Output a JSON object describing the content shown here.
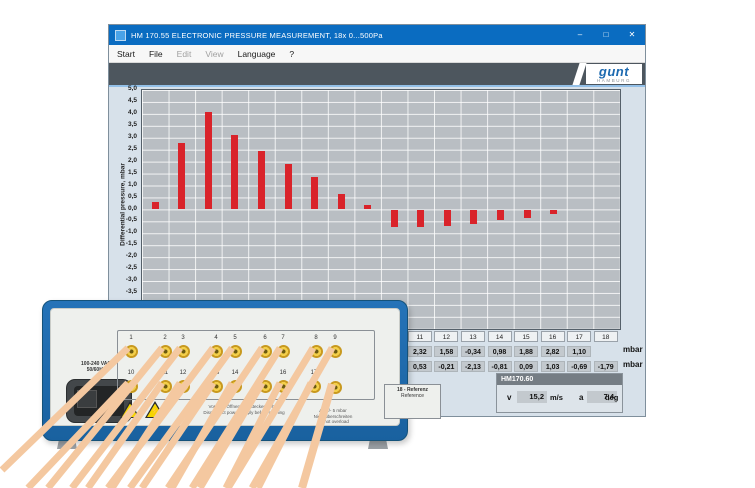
{
  "window": {
    "title": "HM 170.55 ELECTRONIC PRESSURE MEASUREMENT, 18x 0...500Pa",
    "controls": {
      "minimize": "–",
      "maximize": "□",
      "close": "✕"
    },
    "menu": [
      {
        "label": "Start",
        "enabled": true
      },
      {
        "label": "File",
        "enabled": true
      },
      {
        "label": "Edit",
        "enabled": false
      },
      {
        "label": "View",
        "enabled": false
      },
      {
        "label": "Language",
        "enabled": true
      },
      {
        "label": "?",
        "enabled": true
      }
    ],
    "brand": {
      "word": "gunt",
      "sub": "HAMBURG"
    }
  },
  "chart_data": {
    "type": "bar",
    "title": "",
    "categories": [
      "1",
      "2",
      "3",
      "4",
      "5",
      "6",
      "7",
      "8",
      "9",
      "10",
      "11",
      "12",
      "13",
      "14",
      "15",
      "16",
      "17",
      "18"
    ],
    "values": [
      0.3,
      2.8,
      4.1,
      3.1,
      2.45,
      1.9,
      1.35,
      0.65,
      0.2,
      -0.75,
      -0.75,
      -0.7,
      -0.6,
      -0.45,
      -0.35,
      -0.2,
      0,
      0
    ],
    "xlabel": "",
    "ylabel": "Differential pressure, mbar",
    "ylim": [
      -5,
      5
    ],
    "ytick_step": 0.5,
    "yticks": [
      "5,0",
      "4,5",
      "4,0",
      "3,5",
      "3,0",
      "2,5",
      "2,0",
      "1,5",
      "1,0",
      "0,5",
      "0,0",
      "-0,5",
      "-1,0",
      "-1,5",
      "-2,0",
      "-2,5",
      "-3,0",
      "-3,5",
      "-4,0",
      "-4,5",
      "-5,0"
    ],
    "grid": true,
    "legend": false,
    "bar_color": "#d9232a",
    "plot_bg": "#b9bec3"
  },
  "table": {
    "headers": [
      "1",
      "2",
      "3",
      "4",
      "5",
      "6",
      "7",
      "8",
      "9",
      "10",
      "11",
      "12",
      "13",
      "14",
      "15",
      "16",
      "17",
      "18"
    ],
    "rows": [
      {
        "values": [
          "",
          "",
          "",
          "",
          "",
          "",
          "",
          "",
          "",
          "",
          "2,32",
          "1,58",
          "-0,34",
          "0,98",
          "1,88",
          "2,82",
          "1,10",
          ""
        ],
        "unit": "mbar"
      },
      {
        "values": [
          "",
          "",
          "",
          "",
          "",
          "",
          "",
          "",
          "",
          "",
          "0,53",
          "-0,21",
          "-2,13",
          "-0,81",
          "0,09",
          "1,03",
          "-0,69",
          "-1,79"
        ],
        "unit": "mbar"
      }
    ]
  },
  "aux_panel": {
    "title": "HM170.60",
    "v_label": "v",
    "v_value": "15,2",
    "v_unit": "m/s",
    "a_label": "a",
    "a_value": "7,4",
    "a_unit": "deg"
  },
  "device": {
    "power_line1": "100-240 VAC",
    "power_line2": "50/60Hz",
    "ports_top": [
      "1",
      "2",
      "3",
      "4",
      "5",
      "6",
      "7",
      "8",
      "9"
    ],
    "ports_bottom": [
      "10",
      "11",
      "12",
      "13",
      "14",
      "15",
      "16",
      "17"
    ],
    "reference_title": "18 - Referenz",
    "reference_subtitle": "Reference",
    "warning_symbol_1": "!",
    "warning_symbol_2": "⚡",
    "warning_line1": "Vor dem Öffnen Netzstecker ziehen",
    "warning_line2": "Disconnect power supply before opening",
    "note_lines": [
      "Δp +/- 5 mbar",
      "Nicht überschreiten",
      "Do not overload"
    ],
    "accent_blue": "#1d6ab0",
    "tube_color": "#f4c8a0"
  }
}
